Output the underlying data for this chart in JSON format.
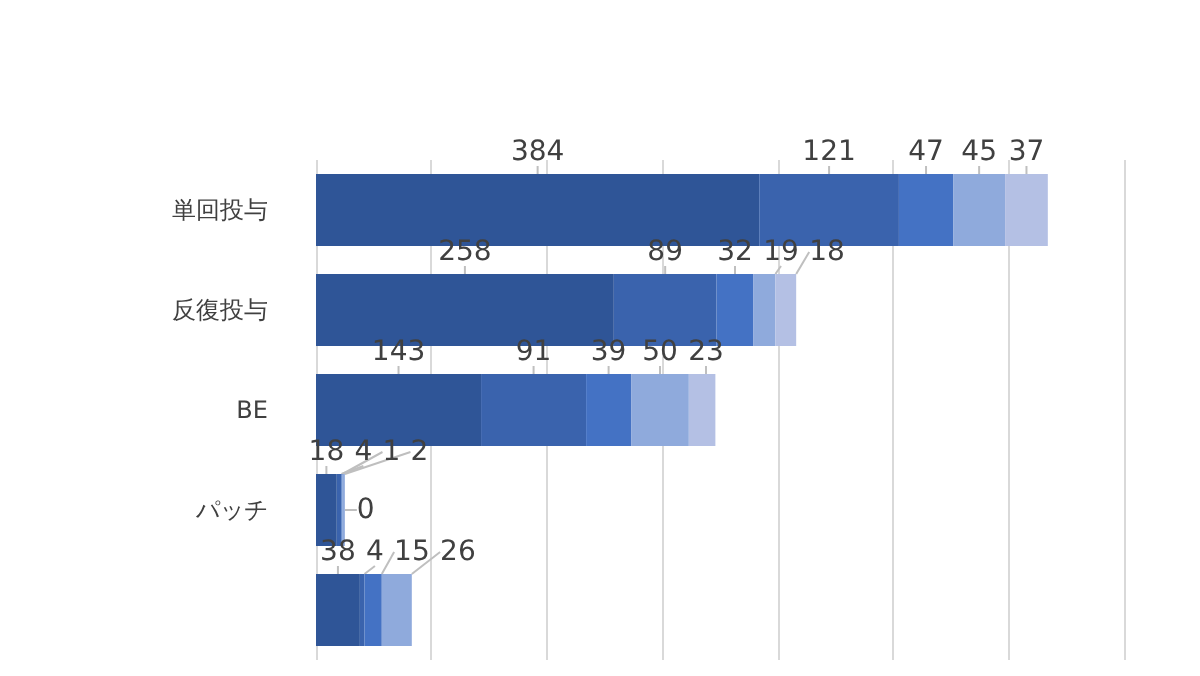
{
  "chart_data": {
    "type": "bar",
    "orientation": "horizontal",
    "stacked": true,
    "data_labels": true,
    "grid": "x",
    "tick_labels": "y",
    "categories": [
      "単回投与",
      "反復投与",
      "BE",
      "パッチ",
      null
    ],
    "series": [
      {
        "color": "#2f5597",
        "values": [
          384,
          258,
          143,
          18,
          38
        ]
      },
      {
        "color": "#3a63ad",
        "values": [
          121,
          89,
          91,
          4,
          4
        ]
      },
      {
        "color": "#4472c4",
        "values": [
          47,
          32,
          39,
          1,
          15
        ]
      },
      {
        "color": "#8faadc",
        "values": [
          45,
          19,
          50,
          2,
          26
        ]
      },
      {
        "color": "#b4c0e4",
        "values": [
          37,
          18,
          23,
          0,
          null
        ]
      }
    ]
  }
}
